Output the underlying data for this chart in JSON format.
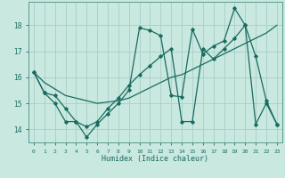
{
  "xlabel": "Humidex (Indice chaleur)",
  "bg_color": "#c8e8e0",
  "grid_color": "#a8cec8",
  "line_color": "#1a6b60",
  "spine_color": "#5a9a90",
  "xlim": [
    -0.5,
    23.5
  ],
  "ylim": [
    13.5,
    18.9
  ],
  "yticks": [
    14,
    15,
    16,
    17,
    18
  ],
  "xticks": [
    0,
    1,
    2,
    3,
    4,
    5,
    6,
    7,
    8,
    9,
    10,
    11,
    12,
    13,
    14,
    15,
    16,
    17,
    18,
    19,
    20,
    21,
    22,
    23
  ],
  "series1_x": [
    0,
    1,
    2,
    3,
    4,
    5,
    6,
    7,
    8,
    9,
    10,
    11,
    12,
    13,
    14,
    15,
    16,
    17,
    18,
    19,
    20,
    21,
    22,
    23
  ],
  "series1_y": [
    16.2,
    15.4,
    15.0,
    14.3,
    14.3,
    13.7,
    14.2,
    14.6,
    15.0,
    15.5,
    17.9,
    17.8,
    17.6,
    15.3,
    15.25,
    17.85,
    16.9,
    17.2,
    17.4,
    18.65,
    18.0,
    16.8,
    15.1,
    14.2
  ],
  "series2_x": [
    0,
    1,
    2,
    3,
    4,
    5,
    6,
    7,
    8,
    9,
    10,
    11,
    12,
    13,
    14,
    15,
    16,
    17,
    18,
    19,
    20,
    21,
    22,
    23
  ],
  "series2_y": [
    16.2,
    15.4,
    15.3,
    14.8,
    14.3,
    14.1,
    14.3,
    14.8,
    15.2,
    15.7,
    16.1,
    16.45,
    16.8,
    17.1,
    14.3,
    14.3,
    17.1,
    16.7,
    17.1,
    17.5,
    18.0,
    14.2,
    15.0,
    14.2
  ],
  "series3_x": [
    0,
    1,
    2,
    3,
    4,
    5,
    6,
    7,
    8,
    9,
    10,
    11,
    12,
    13,
    14,
    15,
    16,
    17,
    18,
    19,
    20,
    21,
    22,
    23
  ],
  "series3_y": [
    16.2,
    15.8,
    15.55,
    15.3,
    15.2,
    15.1,
    15.0,
    15.05,
    15.1,
    15.2,
    15.4,
    15.6,
    15.8,
    16.0,
    16.1,
    16.3,
    16.5,
    16.7,
    16.9,
    17.1,
    17.3,
    17.5,
    17.7,
    18.0
  ]
}
